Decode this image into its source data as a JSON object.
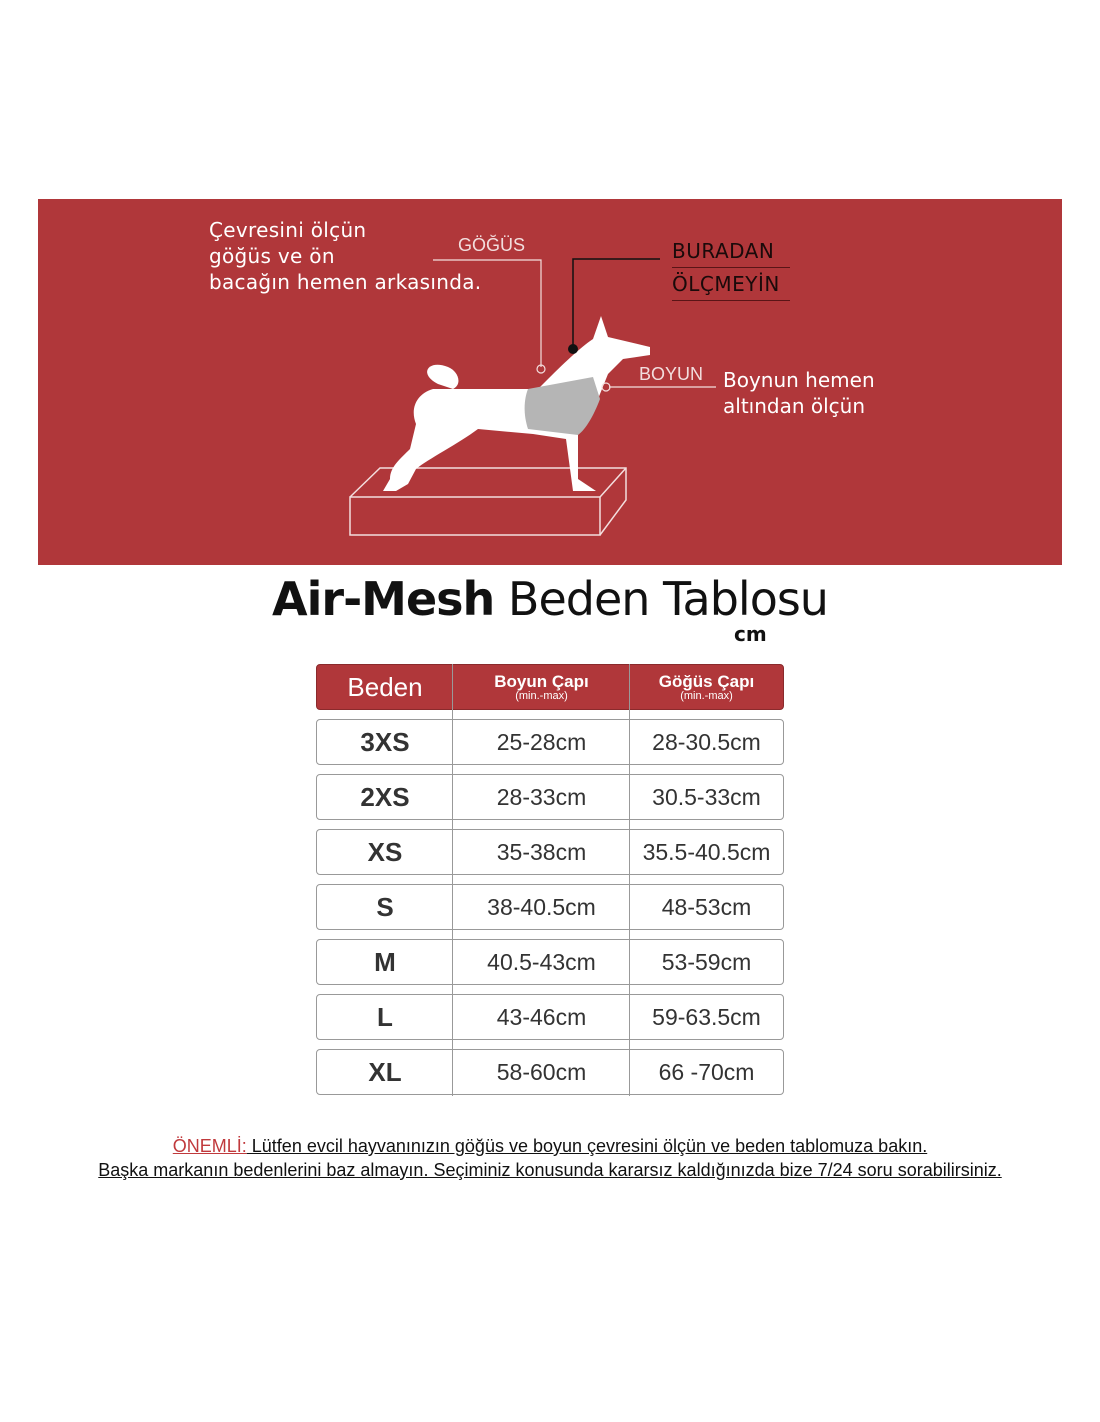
{
  "banner": {
    "intro_lines": [
      "Çevresini ölçün",
      "göğüs ve  ön",
      "bacağın hemen arkasında."
    ],
    "chest_label": "GÖĞÜS",
    "neck_label": "BOYUN",
    "neck_desc_lines": [
      "Boynun hemen",
      "altından ölçün"
    ],
    "warning_lines": [
      "BURADAN",
      "ÖLÇMEYİN"
    ],
    "background_color": "#b0373a"
  },
  "title": {
    "brand": "Air-Mesh",
    "rest": "Beden Tablosu",
    "unit": "cm"
  },
  "table": {
    "headers": [
      {
        "label": "Beden"
      },
      {
        "label": "Boyun Çapı",
        "sub": "(min.-max)"
      },
      {
        "label": "Göğüs Çapı",
        "sub": "(min.-max)"
      }
    ],
    "rows": [
      [
        "3XS",
        "25-28cm",
        "28-30.5cm"
      ],
      [
        "2XS",
        "28-33cm",
        "30.5-33cm"
      ],
      [
        "XS",
        "35-38cm",
        "35.5-40.5cm"
      ],
      [
        "S",
        "38-40.5cm",
        "48-53cm"
      ],
      [
        "M",
        "40.5-43cm",
        "53-59cm"
      ],
      [
        "L",
        "43-46cm",
        "59-63.5cm"
      ],
      [
        "XL",
        "58-60cm",
        "66 -70cm"
      ]
    ]
  },
  "note": {
    "label": "ÖNEMLİ:",
    "line1": " Lütfen evcil hayvanınızın göğüs ve boyun çevresini ölçün ve beden tablomuza bakın.",
    "line2": "Başka markanın bedenlerini baz almayın. Seçiminiz konusunda kararsız kaldığınızda bize 7/24 soru sorabilirsiniz."
  }
}
